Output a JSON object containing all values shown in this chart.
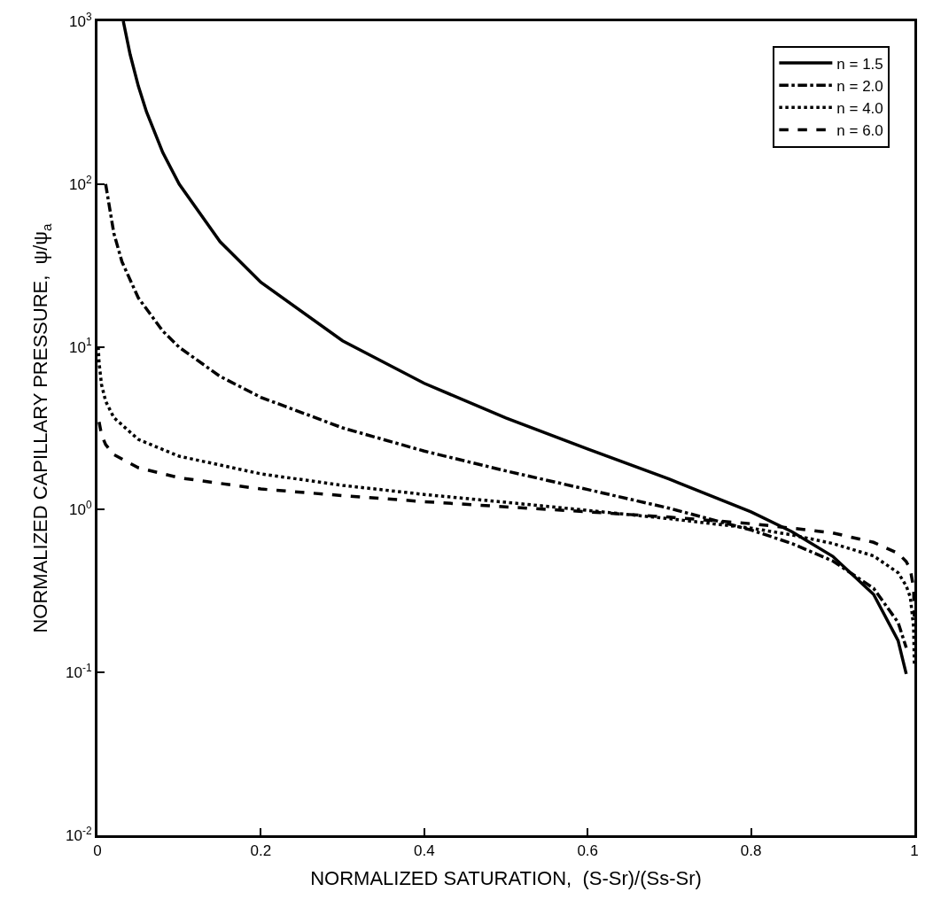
{
  "chart_data": {
    "type": "line",
    "xlabel": "NORMALIZED SATURATION,  (S-Sr)/(Ss-Sr)",
    "ylabel": "NORMALIZED CAPILLARY PRESSURE,  ψ/ψ$_{a}$",
    "log": "y",
    "xlim": [
      0,
      1
    ],
    "ylim": [
      0.01,
      1000
    ],
    "xticks": [
      0,
      0.2,
      0.4,
      0.6,
      0.8,
      1
    ],
    "yticks": [
      {
        "value": 0.01,
        "label": "10$^{-2}$"
      },
      {
        "value": 0.1,
        "label": "10$^{-1}$"
      },
      {
        "value": 1,
        "label": "10$^{0}$"
      },
      {
        "value": 10,
        "label": "10$^{1}$"
      },
      {
        "value": 100,
        "label": "10$^{2}$"
      },
      {
        "value": 1000,
        "label": "10$^{3}$"
      }
    ],
    "grid": false,
    "legend": "top right",
    "marker": "none",
    "series": [
      {
        "name": "n = 1.5",
        "color": "#000000",
        "line_style": "solid",
        "x": [
          0.0316,
          0.04,
          0.05,
          0.06,
          0.08,
          0.1,
          0.15,
          0.2,
          0.3,
          0.4,
          0.5,
          0.6,
          0.7,
          0.8,
          0.85,
          0.9,
          0.95,
          0.98,
          0.99
        ],
        "values": [
          1000,
          625,
          400,
          278,
          156,
          100,
          44.3,
          24.9,
          10.9,
          5.97,
          3.66,
          2.36,
          1.54,
          0.97,
          0.733,
          0.517,
          0.302,
          0.157,
          0.098
        ]
      },
      {
        "name": "n = 2.0",
        "color": "#000000",
        "line_style": "dashdot",
        "x": [
          0.01,
          0.02,
          0.03,
          0.05,
          0.08,
          0.1,
          0.15,
          0.2,
          0.3,
          0.4,
          0.5,
          0.6,
          0.7,
          0.8,
          0.85,
          0.9,
          0.95,
          0.98,
          0.99
        ],
        "values": [
          100,
          50,
          33.3,
          20,
          12.5,
          9.95,
          6.59,
          4.9,
          3.18,
          2.29,
          1.73,
          1.33,
          1.02,
          0.75,
          0.62,
          0.484,
          0.329,
          0.203,
          0.142
        ]
      },
      {
        "name": "n = 4.0",
        "color": "#000000",
        "line_style": "dotted",
        "x": [
          0.001,
          0.002,
          0.005,
          0.01,
          0.02,
          0.05,
          0.1,
          0.2,
          0.3,
          0.4,
          0.5,
          0.6,
          0.7,
          0.8,
          0.85,
          0.9,
          0.95,
          0.98,
          0.99,
          0.995,
          0.999,
          0.9999
        ],
        "values": [
          10,
          7.94,
          5.85,
          4.64,
          3.68,
          2.7,
          2.13,
          1.66,
          1.41,
          1.24,
          1.11,
          0.99,
          0.88,
          0.77,
          0.7,
          0.62,
          0.52,
          0.41,
          0.34,
          0.29,
          0.19,
          0.11
        ]
      },
      {
        "name": "n = 6.0",
        "color": "#000000",
        "line_style": "dashed",
        "x": [
          0.002,
          0.005,
          0.01,
          0.02,
          0.05,
          0.1,
          0.2,
          0.3,
          0.4,
          0.5,
          0.6,
          0.7,
          0.8,
          0.85,
          0.9,
          0.95,
          0.98,
          0.99,
          0.995,
          0.999,
          0.9999
        ],
        "values": [
          3.46,
          2.88,
          2.51,
          2.18,
          1.81,
          1.57,
          1.34,
          1.22,
          1.12,
          1.04,
          0.97,
          0.9,
          0.82,
          0.77,
          0.72,
          0.63,
          0.54,
          0.48,
          0.43,
          0.33,
          0.22
        ]
      }
    ]
  }
}
